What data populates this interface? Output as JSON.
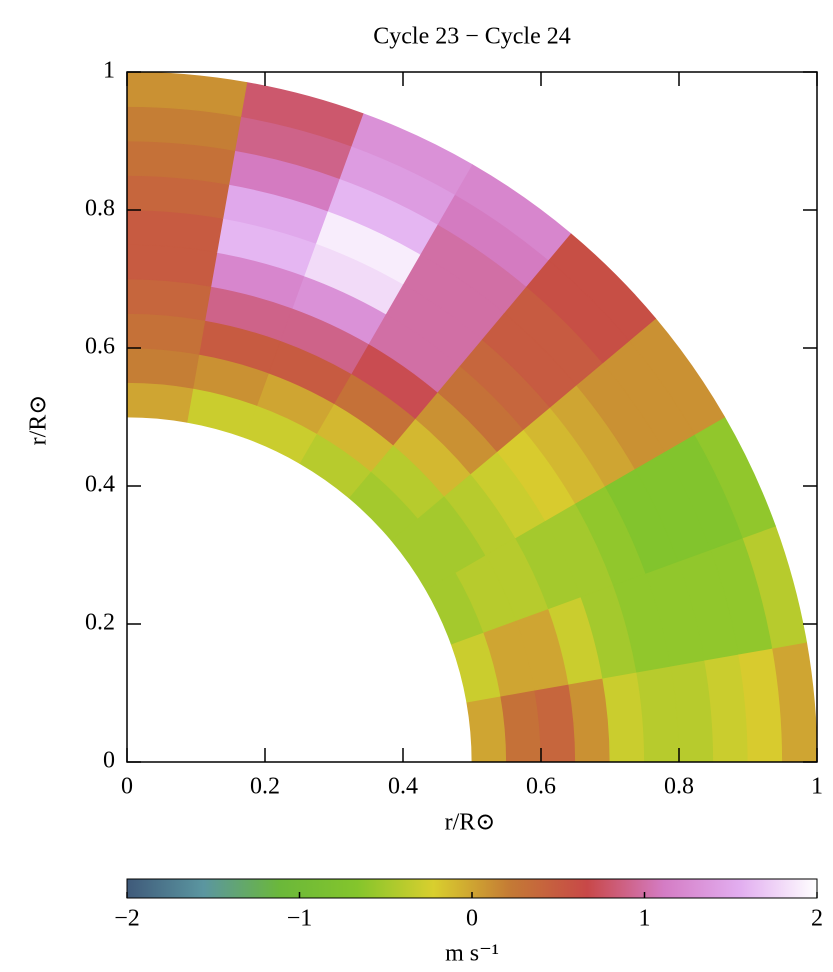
{
  "chart_data": {
    "type": "polar-heatmap",
    "title": "Cycle 23 − Cycle 24",
    "x_label": "r/R⊙",
    "y_label": "r/R⊙",
    "xlim": [
      0,
      1
    ],
    "ylim": [
      0,
      1
    ],
    "xticks": [
      0,
      0.2,
      0.4,
      0.6,
      0.8,
      1
    ],
    "yticks": [
      0,
      0.2,
      0.4,
      0.6,
      0.8,
      1
    ],
    "r_edges": [
      0.5,
      0.55,
      0.6,
      0.65,
      0.7,
      0.75,
      0.8,
      0.85,
      0.9,
      0.95,
      1.0
    ],
    "latitude_edges": [
      0,
      10,
      20,
      30,
      40,
      50,
      60,
      70,
      80,
      90
    ],
    "values": [
      [
        0.0,
        -0.3,
        -0.5,
        -0.5,
        -0.5,
        -0.4,
        -0.3,
        -0.3,
        0.0
      ],
      [
        0.3,
        0.0,
        -0.4,
        -0.5,
        -0.4,
        -0.1,
        0.0,
        0.1,
        0.2
      ],
      [
        0.4,
        0.0,
        -0.4,
        -0.4,
        -0.1,
        0.3,
        0.5,
        0.5,
        0.3
      ],
      [
        0.1,
        -0.3,
        -0.5,
        -0.3,
        0.1,
        0.7,
        0.9,
        0.9,
        0.4
      ],
      [
        -0.3,
        -0.5,
        -0.5,
        -0.2,
        0.3,
        1.0,
        1.3,
        1.2,
        0.5
      ],
      [
        -0.4,
        -0.6,
        -0.6,
        -0.1,
        0.4,
        1.0,
        1.8,
        1.6,
        0.5
      ],
      [
        -0.4,
        -0.6,
        -0.7,
        0.0,
        0.5,
        1.0,
        1.9,
        1.5,
        0.4
      ],
      [
        -0.3,
        -0.6,
        -0.7,
        0.1,
        0.5,
        1.0,
        1.6,
        1.1,
        0.3
      ],
      [
        -0.2,
        -0.6,
        -0.7,
        0.1,
        0.6,
        1.1,
        1.4,
        0.9,
        0.2
      ],
      [
        0.0,
        -0.4,
        -0.6,
        0.1,
        0.6,
        1.2,
        1.3,
        0.8,
        0.1
      ]
    ],
    "clim": [
      -2,
      2
    ],
    "colorbar_ticks": [
      {
        "value": -2,
        "label": "−2"
      },
      {
        "value": -1,
        "label": "−1"
      },
      0,
      1,
      2
    ],
    "colorbar_label": "m s⁻¹",
    "colors": [
      "#3f5a7a",
      "#5b96a0",
      "#6bb83a",
      "#84c52c",
      "#d9cf2e",
      "#c47a35",
      "#c84848",
      "#d47cc4",
      "#e2aef0",
      "#ffffff"
    ]
  }
}
